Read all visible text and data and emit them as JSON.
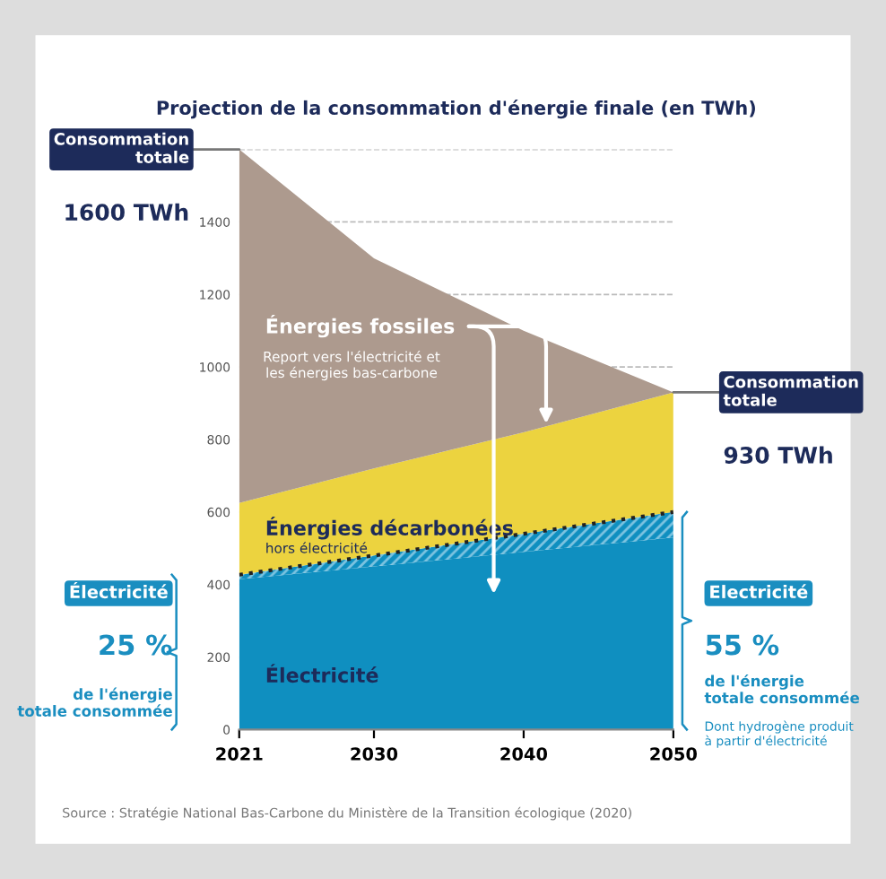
{
  "chart_data": {
    "type": "area",
    "stacked": true,
    "title": "Projection de la consommation d'énergie finale (en TWh)",
    "x": [
      2021,
      2030,
      2040,
      2050
    ],
    "series": [
      {
        "name": "Électricité",
        "color": "#0f8fc0",
        "values": [
          415,
          450,
          490,
          530
        ]
      },
      {
        "color": "#7cc3e0",
        "values": [
          12,
          30,
          50,
          70
        ]
      },
      {
        "name": "Énergies décarbonées",
        "color": "#ecd33f",
        "values": [
          198,
          240,
          280,
          330
        ]
      },
      {
        "name": "Énergies fossiles",
        "color": "#ad9a8e",
        "values": [
          975,
          580,
          280,
          0
        ]
      }
    ],
    "xlim": [
      2021,
      2050
    ],
    "xticks": [
      2021,
      2030,
      2040,
      2050
    ],
    "ylim": [
      0,
      1600
    ],
    "yticks": [
      0,
      200,
      400,
      600,
      800,
      1000,
      1200,
      1400,
      {
        "value": 1600,
        "label": null
      }
    ],
    "grid": "y",
    "legend": false,
    "annotations": [
      "hors électricité",
      "Report vers l'électricité et les énergies bas-carbone",
      "Consommation totale",
      "1600 TWh",
      "Consommation totale",
      "930 TWh",
      "Électricité",
      "25 %",
      "de l'énergie totale consommée",
      "Electricité",
      "55 %",
      "de l'énergie totale consommée",
      "Dont hydrogène produit à partir d'électricité",
      "Source : Stratégie National Bas-Carbone du Ministère de la Transition écologique (2020)"
    ]
  }
}
